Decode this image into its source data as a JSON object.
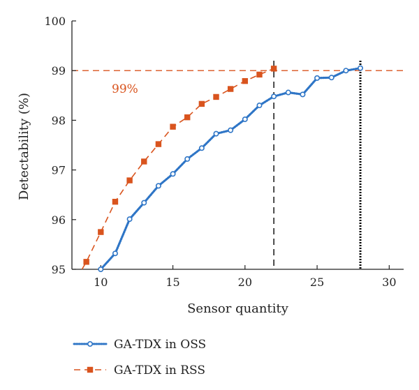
{
  "chart_data": {
    "type": "line",
    "xlabel": "Sensor quantity",
    "ylabel": "Detectability (%)",
    "xlim": [
      8,
      31
    ],
    "ylim": [
      95,
      100
    ],
    "xticks": [
      10,
      15,
      20,
      25,
      30
    ],
    "yticks": [
      95,
      96,
      97,
      98,
      99,
      100
    ],
    "grid": false,
    "legend_position": "bottom",
    "series": [
      {
        "name": "GA-TDX in OSS",
        "color": "#2E75C6",
        "line_style": "dotted",
        "marker": "circle",
        "x": [
          10,
          11,
          12,
          13,
          14,
          15,
          16,
          17,
          18,
          19,
          20,
          21,
          22,
          23,
          24,
          25,
          26,
          27,
          28
        ],
        "y": [
          95.0,
          95.32,
          96.01,
          96.34,
          96.68,
          96.92,
          97.22,
          97.44,
          97.73,
          97.8,
          98.02,
          98.3,
          98.48,
          98.56,
          98.52,
          98.85,
          98.86,
          99.0,
          99.05
        ]
      },
      {
        "name": "GA-TDX in RSS",
        "color": "#D9541E",
        "line_style": "dashed",
        "marker": "square",
        "x": [
          9,
          10,
          11,
          12,
          13,
          14,
          15,
          16,
          17,
          18,
          19,
          20,
          21,
          22
        ],
        "y": [
          95.15,
          95.75,
          96.36,
          96.79,
          97.17,
          97.52,
          97.87,
          98.06,
          98.33,
          98.47,
          98.63,
          98.79,
          98.92,
          99.04
        ]
      }
    ],
    "reference_lines": [
      {
        "orientation": "horizontal",
        "value": 99,
        "color": "#D9541E",
        "style": "dashed"
      },
      {
        "orientation": "vertical",
        "value": 22,
        "color": "#000000",
        "style": "dashed"
      },
      {
        "orientation": "vertical",
        "value": 28,
        "color": "#000000",
        "style": "dotted"
      }
    ],
    "annotations": [
      {
        "text": "99%",
        "color": "#D9541E"
      }
    ]
  }
}
